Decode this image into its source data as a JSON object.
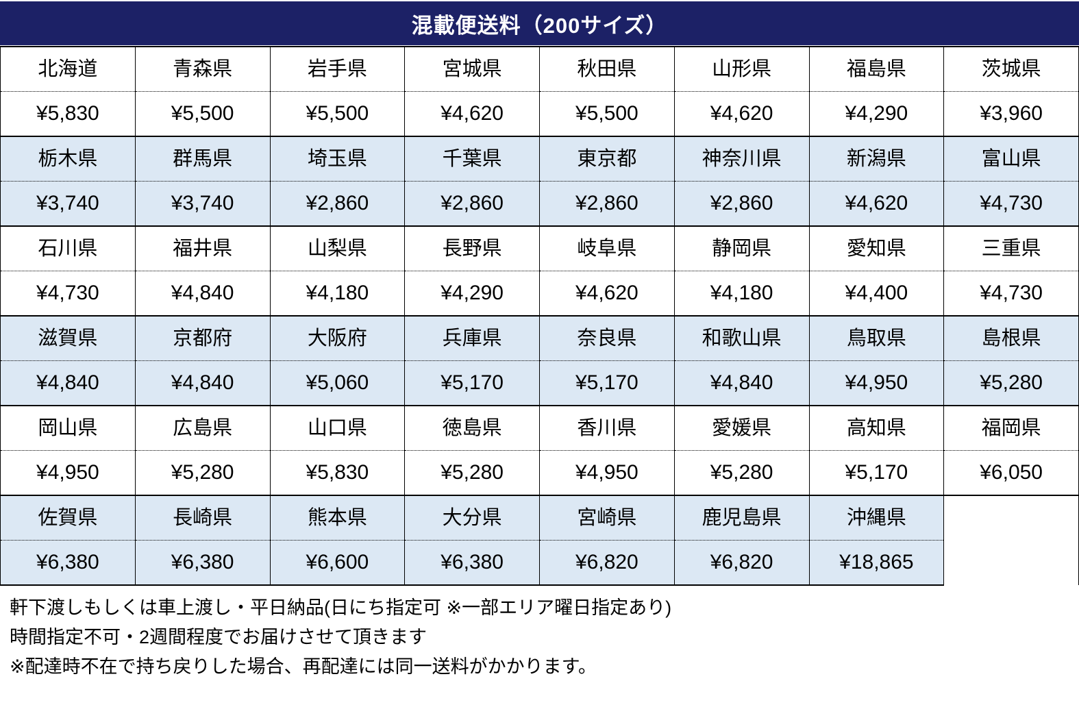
{
  "header": {
    "title": "混載便送料（200サイズ）"
  },
  "colors": {
    "header_bg": "#1C2166",
    "header_text": "#FFFFFF",
    "band_blue": "#DCE8F4",
    "band_white": "#FFFFFF",
    "border": "#000000"
  },
  "table": {
    "bands": [
      {
        "bg": "white",
        "cells": [
          {
            "prefecture": "北海道",
            "price": "¥5,830"
          },
          {
            "prefecture": "青森県",
            "price": "¥5,500"
          },
          {
            "prefecture": "岩手県",
            "price": "¥5,500"
          },
          {
            "prefecture": "宮城県",
            "price": "¥4,620"
          },
          {
            "prefecture": "秋田県",
            "price": "¥5,500"
          },
          {
            "prefecture": "山形県",
            "price": "¥4,620"
          },
          {
            "prefecture": "福島県",
            "price": "¥4,290"
          },
          {
            "prefecture": "茨城県",
            "price": "¥3,960"
          }
        ]
      },
      {
        "bg": "blue",
        "cells": [
          {
            "prefecture": "栃木県",
            "price": "¥3,740"
          },
          {
            "prefecture": "群馬県",
            "price": "¥3,740"
          },
          {
            "prefecture": "埼玉県",
            "price": "¥2,860"
          },
          {
            "prefecture": "千葉県",
            "price": "¥2,860"
          },
          {
            "prefecture": "東京都",
            "price": "¥2,860"
          },
          {
            "prefecture": "神奈川県",
            "price": "¥2,860"
          },
          {
            "prefecture": "新潟県",
            "price": "¥4,620"
          },
          {
            "prefecture": "富山県",
            "price": "¥4,730"
          }
        ]
      },
      {
        "bg": "white",
        "cells": [
          {
            "prefecture": "石川県",
            "price": "¥4,730"
          },
          {
            "prefecture": "福井県",
            "price": "¥4,840"
          },
          {
            "prefecture": "山梨県",
            "price": "¥4,180"
          },
          {
            "prefecture": "長野県",
            "price": "¥4,290"
          },
          {
            "prefecture": "岐阜県",
            "price": "¥4,620"
          },
          {
            "prefecture": "静岡県",
            "price": "¥4,180"
          },
          {
            "prefecture": "愛知県",
            "price": "¥4,400"
          },
          {
            "prefecture": "三重県",
            "price": "¥4,730"
          }
        ]
      },
      {
        "bg": "blue",
        "cells": [
          {
            "prefecture": "滋賀県",
            "price": "¥4,840"
          },
          {
            "prefecture": "京都府",
            "price": "¥4,840"
          },
          {
            "prefecture": "大阪府",
            "price": "¥5,060"
          },
          {
            "prefecture": "兵庫県",
            "price": "¥5,170"
          },
          {
            "prefecture": "奈良県",
            "price": "¥5,170"
          },
          {
            "prefecture": "和歌山県",
            "price": "¥4,840"
          },
          {
            "prefecture": "鳥取県",
            "price": "¥4,950"
          },
          {
            "prefecture": "島根県",
            "price": "¥5,280"
          }
        ]
      },
      {
        "bg": "white",
        "cells": [
          {
            "prefecture": "岡山県",
            "price": "¥4,950"
          },
          {
            "prefecture": "広島県",
            "price": "¥5,280"
          },
          {
            "prefecture": "山口県",
            "price": "¥5,830"
          },
          {
            "prefecture": "徳島県",
            "price": "¥5,280"
          },
          {
            "prefecture": "香川県",
            "price": "¥4,950"
          },
          {
            "prefecture": "愛媛県",
            "price": "¥5,280"
          },
          {
            "prefecture": "高知県",
            "price": "¥5,170"
          },
          {
            "prefecture": "福岡県",
            "price": "¥6,050"
          }
        ]
      },
      {
        "bg": "blue",
        "cells": [
          {
            "prefecture": "佐賀県",
            "price": "¥6,380"
          },
          {
            "prefecture": "長崎県",
            "price": "¥6,380"
          },
          {
            "prefecture": "熊本県",
            "price": "¥6,600"
          },
          {
            "prefecture": "大分県",
            "price": "¥6,380"
          },
          {
            "prefecture": "宮崎県",
            "price": "¥6,820"
          },
          {
            "prefecture": "鹿児島県",
            "price": "¥6,820"
          },
          {
            "prefecture": "沖縄県",
            "price": "¥18,865"
          }
        ]
      }
    ]
  },
  "notes": [
    "軒下渡しもしくは車上渡し・平日納品(日にち指定可 ※一部エリア曜日指定あり)",
    "時間指定不可・2週間程度でお届けさせて頂きます",
    "※配達時不在で持ち戻りした場合、再配達には同一送料がかかります。"
  ]
}
